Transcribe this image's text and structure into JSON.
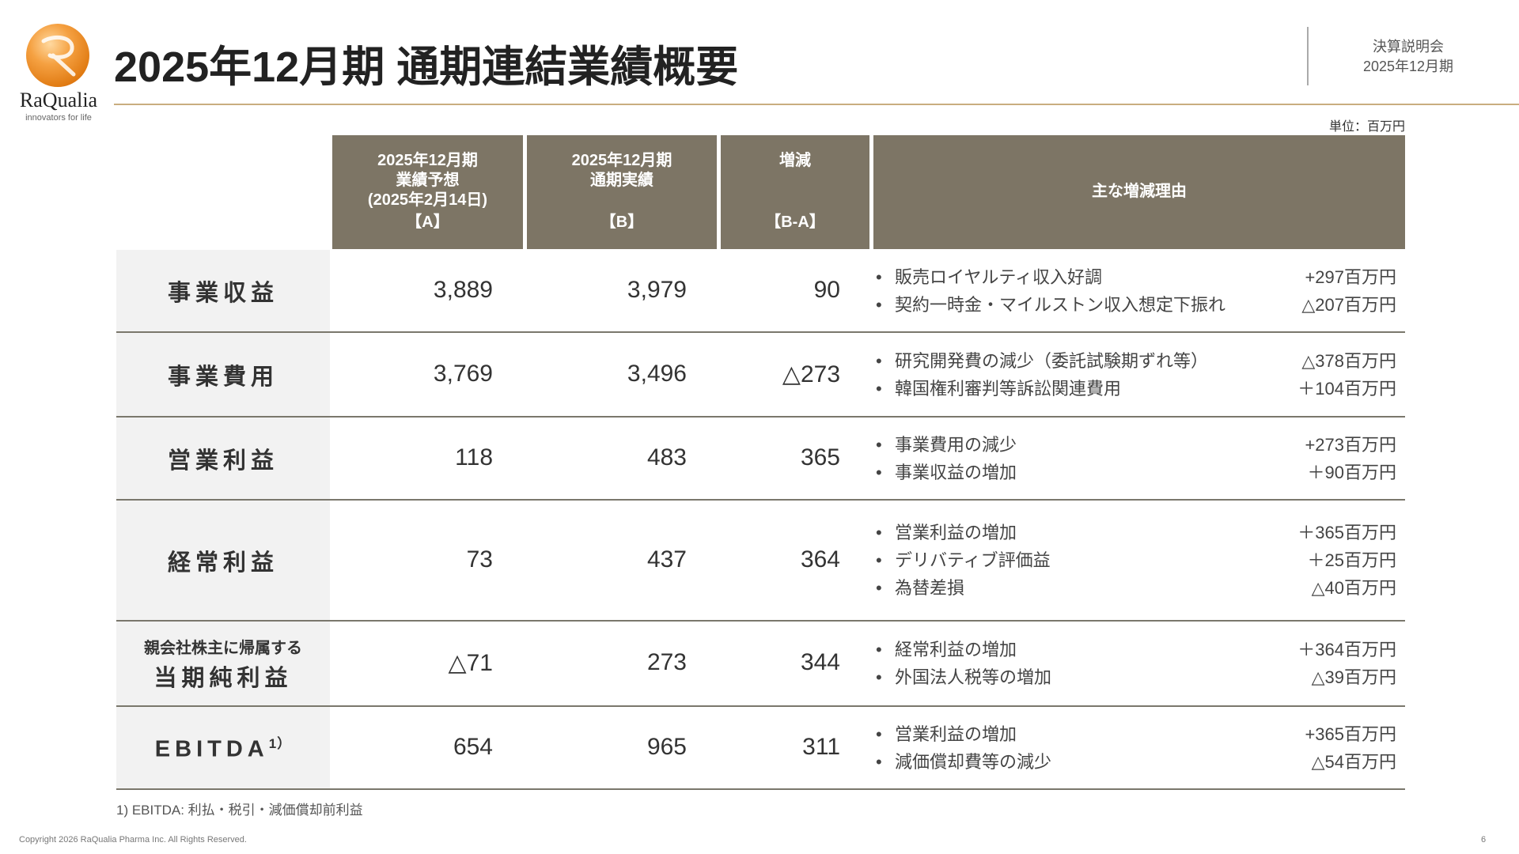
{
  "logo": {
    "name": "RaQualia",
    "tagline": "innovators for life"
  },
  "title": "2025年12月期 通期連結業績概要",
  "meta": {
    "event": "決算説明会",
    "period": "2025年12月期"
  },
  "unit": "単位：百万円",
  "headers": [
    {
      "top": "2025年12月期\n業績予想\n(2025年2月14日)",
      "bottom": "【A】"
    },
    {
      "top": "2025年12月期\n通期実績",
      "bottom": "【B】"
    },
    {
      "top": "増減",
      "bottom": "【B-A】"
    },
    {
      "top": "",
      "bottom": "主な増減理由"
    }
  ],
  "rows": [
    {
      "label": "事業収益",
      "sub": "",
      "a": "3,889",
      "b": "3,979",
      "diff": "90",
      "reasons": [
        {
          "text": "販売ロイヤルティ収入好調",
          "amount": "+297百万円"
        },
        {
          "text": "契約一時金・マイルストン収入想定下振れ",
          "amount": "△207百万円"
        }
      ]
    },
    {
      "label": "事業費用",
      "sub": "",
      "a": "3,769",
      "b": "3,496",
      "diff": "△273",
      "reasons": [
        {
          "text": "研究開発費の減少（委託試験期ずれ等）",
          "amount": "△378百万円"
        },
        {
          "text": "韓国権利審判等訴訟関連費用",
          "amount": "＋104百万円"
        }
      ]
    },
    {
      "label": "営業利益",
      "sub": "",
      "a": "118",
      "b": "483",
      "diff": "365",
      "reasons": [
        {
          "text": "事業費用の減少",
          "amount": "+273百万円"
        },
        {
          "text": "事業収益の増加",
          "amount": "＋90百万円"
        }
      ]
    },
    {
      "label": "経常利益",
      "sub": "",
      "a": "73",
      "b": "437",
      "diff": "364",
      "reasons": [
        {
          "text": "営業利益の増加",
          "amount": "＋365百万円"
        },
        {
          "text": "デリバティブ評価益",
          "amount": "＋25百万円"
        },
        {
          "text": "為替差損",
          "amount": "△40百万円"
        }
      ]
    },
    {
      "label": "当期純利益",
      "sub": "親会社株主に帰属する",
      "a": "△71",
      "b": "273",
      "diff": "344",
      "reasons": [
        {
          "text": "経常利益の増加",
          "amount": "＋364百万円"
        },
        {
          "text": "外国法人税等の増加",
          "amount": "△39百万円"
        }
      ]
    },
    {
      "label": "EBITDA",
      "sup": "1）",
      "sub": "",
      "a": "654",
      "b": "965",
      "diff": "311",
      "reasons": [
        {
          "text": "営業利益の増加",
          "amount": "+365百万円"
        },
        {
          "text": "減価償却費等の減少",
          "amount": "△54百万円"
        }
      ]
    }
  ],
  "bullet": "•",
  "footnote": "1) EBITDA: 利払・税引・減価償却前利益",
  "copyright": "Copyright 2026 RaQualia Pharma Inc. All Rights Reserved.",
  "page_number": "6",
  "colors": {
    "header_bg": "#7d7565",
    "accent_line": "#c9ad7f",
    "label_bg": "#f2f2f2"
  }
}
